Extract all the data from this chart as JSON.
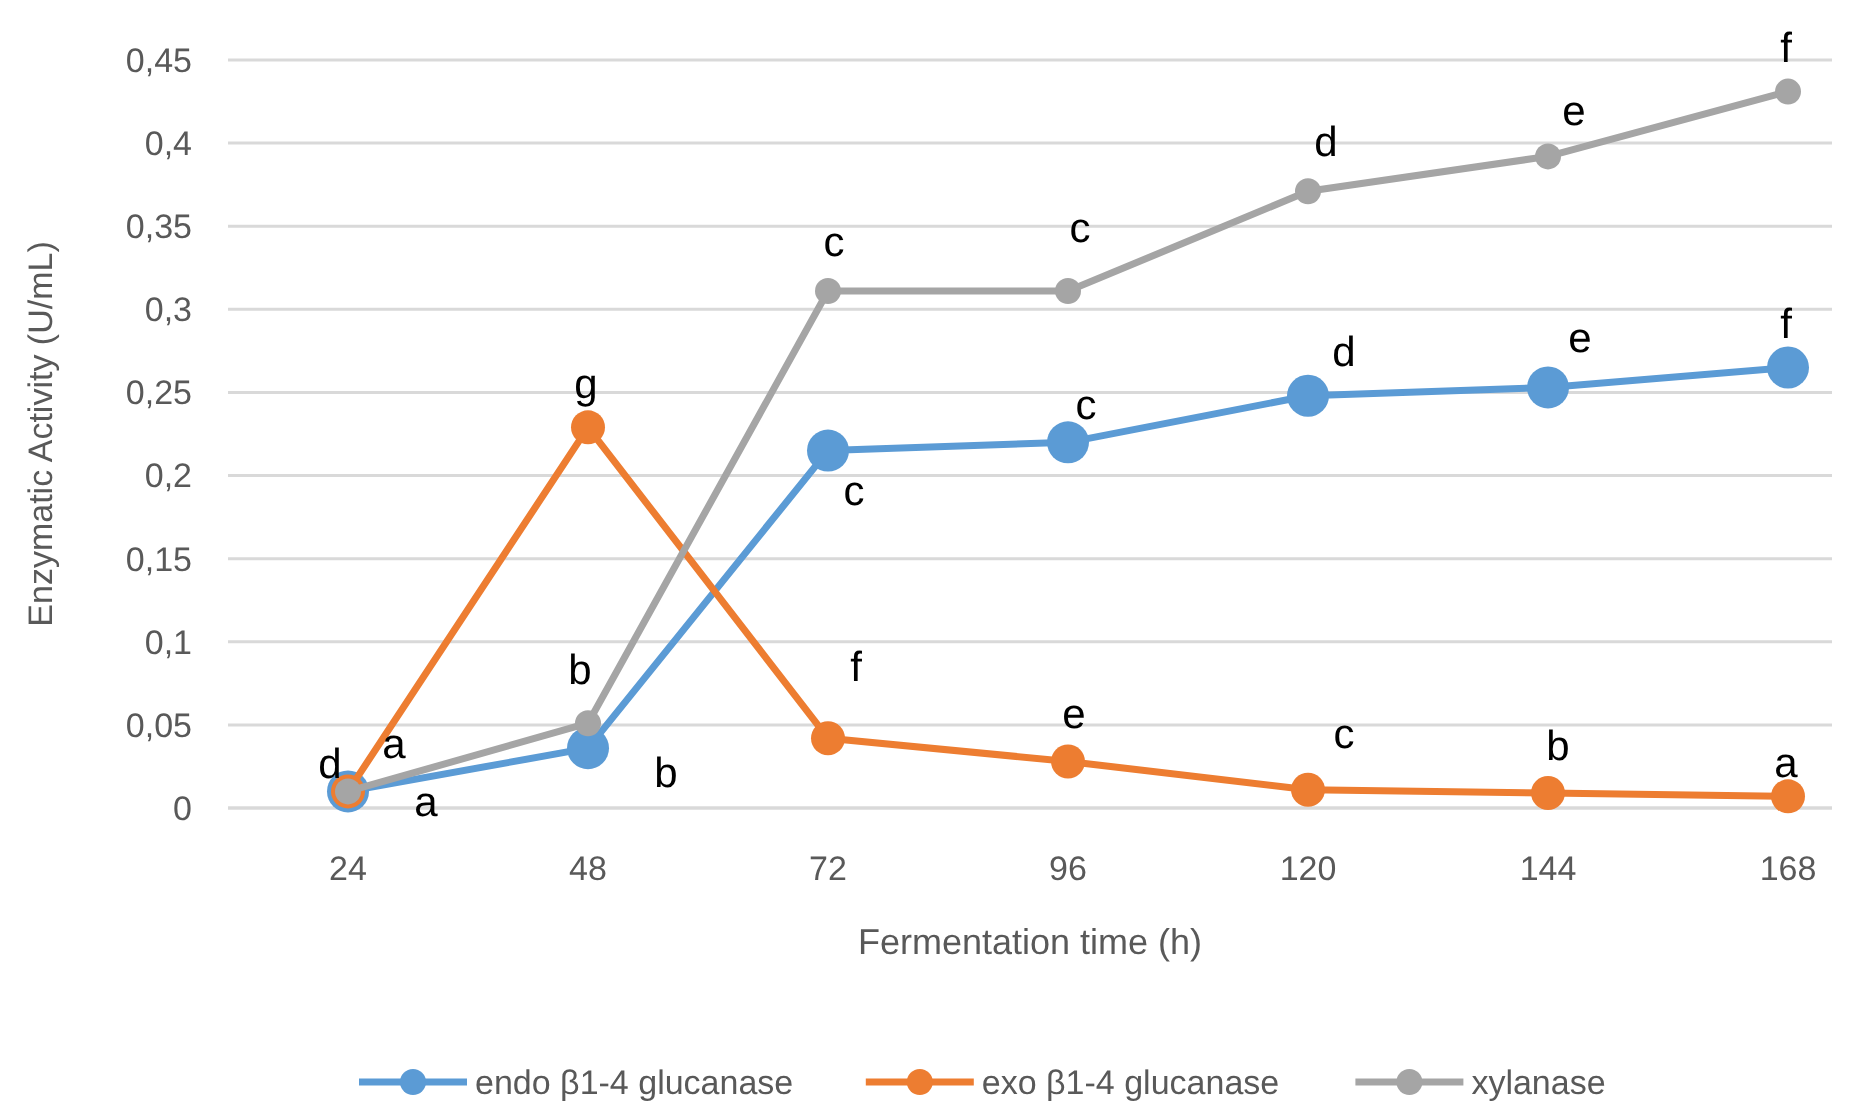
{
  "chart_data": {
    "type": "line",
    "xlabel": "Fermentation time (h)",
    "ylabel": "Enzymatic Activity (U/mL)",
    "categories": [
      "24",
      "48",
      "72",
      "96",
      "120",
      "144",
      "168"
    ],
    "ylim": [
      0,
      0.45
    ],
    "yticks": [
      {
        "value": 0,
        "label": "0"
      },
      {
        "value": 0.05,
        "label": "0,05"
      },
      {
        "value": 0.1,
        "label": "0,1"
      },
      {
        "value": 0.15,
        "label": "0,15"
      },
      {
        "value": 0.2,
        "label": "0,2"
      },
      {
        "value": 0.25,
        "label": "0,25"
      },
      {
        "value": 0.3,
        "label": "0,3"
      },
      {
        "value": 0.35,
        "label": "0,35"
      },
      {
        "value": 0.4,
        "label": "0,4"
      },
      {
        "value": 0.45,
        "label": "0,45"
      }
    ],
    "grid": "y",
    "legend": "bottom",
    "marker": "circle",
    "line_style": "solid",
    "series": [
      {
        "name": "endo β1-4 glucanase",
        "color": "#5b9bd5",
        "values": [
          0.01,
          0.036,
          0.215,
          0.22,
          0.248,
          0.253,
          0.265
        ]
      },
      {
        "name": "exo β1-4 glucanase",
        "color": "#ed7d31",
        "values": [
          0.01,
          0.229,
          0.042,
          0.028,
          0.011,
          0.009,
          0.007
        ]
      },
      {
        "name": "xylanase",
        "color": "#a5a5a5",
        "values": [
          0.01,
          0.051,
          0.311,
          0.311,
          0.371,
          0.392,
          0.431
        ]
      }
    ],
    "annotations": [
      {
        "text": "d",
        "x": "24",
        "y": 0.01
      },
      {
        "text": "a",
        "x": "24",
        "y": 0.01
      },
      {
        "text": "a",
        "x": "24",
        "y": 0.01
      },
      {
        "text": "b",
        "x": "48",
        "y": 0.051
      },
      {
        "text": "g",
        "x": "48",
        "y": 0.229
      },
      {
        "text": "b",
        "x": "48",
        "y": 0.036
      },
      {
        "text": "c",
        "x": "72",
        "y": 0.311
      },
      {
        "text": "f",
        "x": "72",
        "y": 0.042
      },
      {
        "text": "c",
        "x": "72",
        "y": 0.215
      },
      {
        "text": "c",
        "x": "96",
        "y": 0.311
      },
      {
        "text": "e",
        "x": "96",
        "y": 0.028
      },
      {
        "text": "c",
        "x": "96",
        "y": 0.22
      },
      {
        "text": "d",
        "x": "120",
        "y": 0.371
      },
      {
        "text": "c",
        "x": "120",
        "y": 0.011
      },
      {
        "text": "d",
        "x": "120",
        "y": 0.248
      },
      {
        "text": "e",
        "x": "144",
        "y": 0.392
      },
      {
        "text": "b",
        "x": "144",
        "y": 0.009
      },
      {
        "text": "e",
        "x": "144",
        "y": 0.253
      },
      {
        "text": "f",
        "x": "168",
        "y": 0.431
      },
      {
        "text": "a",
        "x": "168",
        "y": 0.007
      },
      {
        "text": "f",
        "x": "168",
        "y": 0.265
      }
    ]
  }
}
